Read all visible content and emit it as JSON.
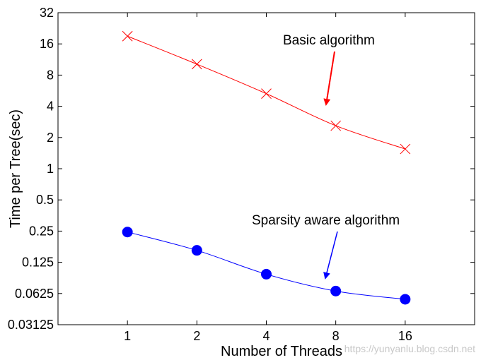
{
  "chart_data": {
    "type": "line",
    "xlabel": "Number of Threads",
    "ylabel": "Time per Tree(sec)",
    "x_scale": "log2",
    "y_scale": "log2",
    "x_ticks": [
      "1",
      "2",
      "4",
      "8",
      "16"
    ],
    "y_ticks": [
      "0.03125",
      "0.0625",
      "0.125",
      "0.25",
      "0.5",
      "1",
      "2",
      "4",
      "8",
      "16",
      "32"
    ],
    "xlim": [
      0.5,
      32
    ],
    "ylim": [
      0.03125,
      32
    ],
    "grid": false,
    "series": [
      {
        "name": "Basic algorithm",
        "color": "#ff0000",
        "marker": "x",
        "x": [
          1,
          2,
          4,
          8,
          16
        ],
        "y": [
          19,
          10.2,
          5.3,
          2.6,
          1.55
        ]
      },
      {
        "name": "Sparsity aware algorithm",
        "color": "#0000ff",
        "marker": "circle",
        "x": [
          1,
          2,
          4,
          8,
          16
        ],
        "y": [
          0.245,
          0.163,
          0.096,
          0.066,
          0.055
        ]
      }
    ],
    "annotations": [
      {
        "text": "Basic algorithm",
        "color": "#ff0000",
        "points_to": "Basic algorithm"
      },
      {
        "text": "Sparsity aware algorithm",
        "color": "#0000ff",
        "points_to": "Sparsity aware algorithm"
      }
    ]
  },
  "watermark": "https://yunyanlu.blog.csdn.net"
}
